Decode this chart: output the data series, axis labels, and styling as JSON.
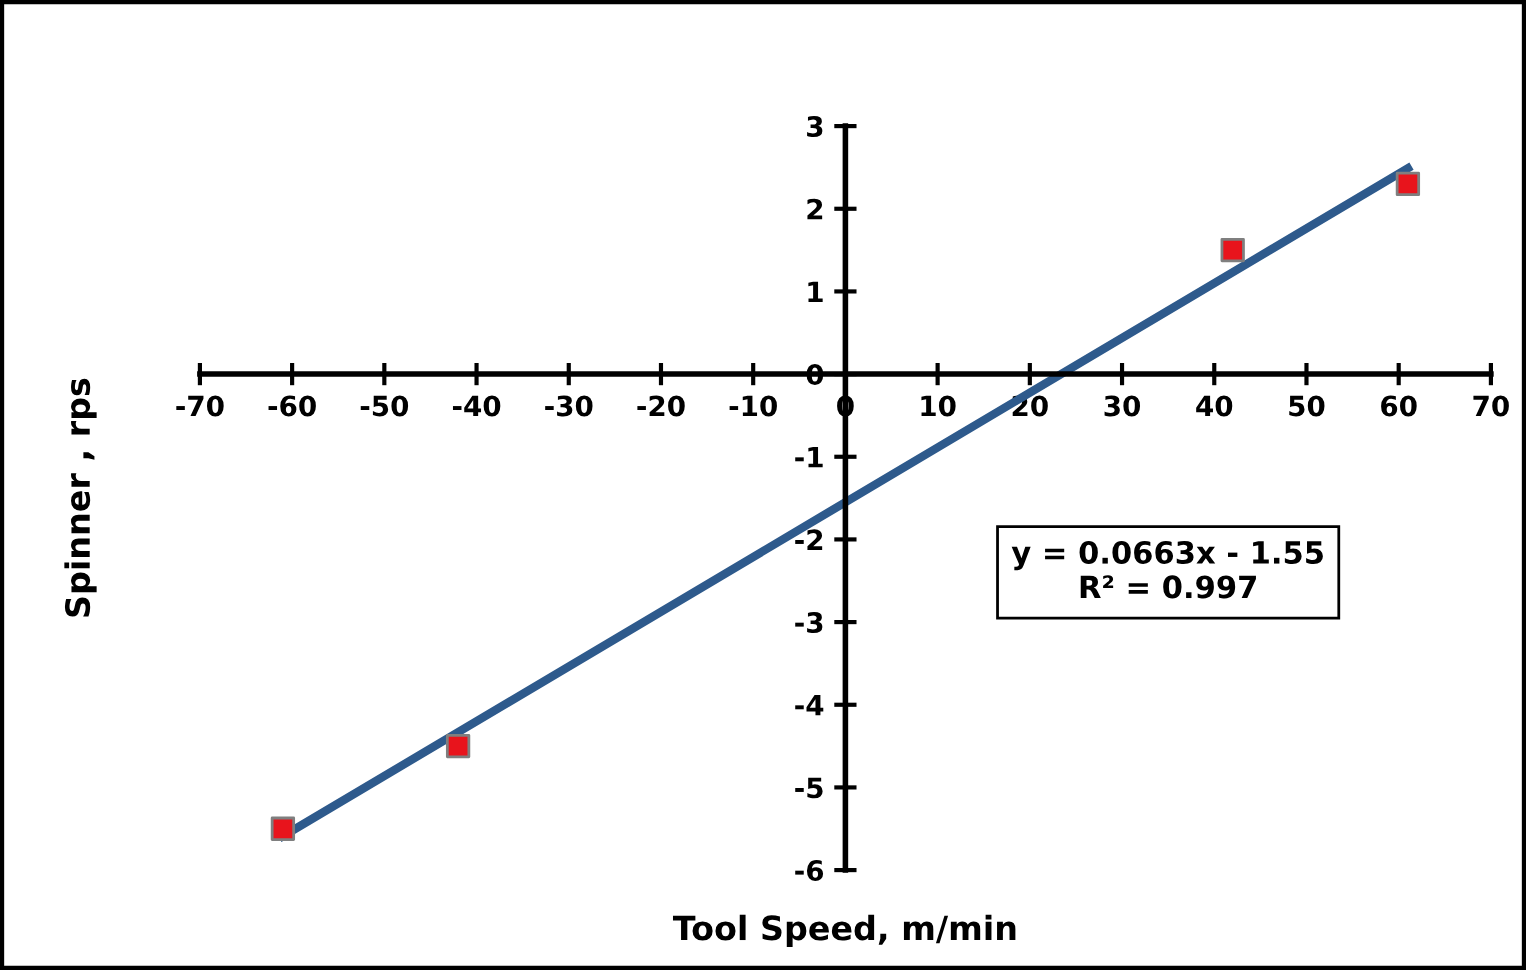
{
  "chart_data": {
    "type": "scatter",
    "xlabel": "Tool Speed, m/min",
    "ylabel": "Spinner , rps",
    "xlim": [
      -70,
      70
    ],
    "xticks": [
      -70,
      -60,
      -50,
      -40,
      -30,
      -20,
      -10,
      0,
      10,
      20,
      30,
      40,
      50,
      60,
      70
    ],
    "ylim": [
      -6,
      3
    ],
    "yticks": [
      -6,
      -5,
      -4,
      -3,
      -2,
      -1,
      0,
      1,
      2,
      3
    ],
    "grid": false,
    "legend": false,
    "series": [
      {
        "color": "#e8141c",
        "marker": "square",
        "x": [
          -61,
          -42,
          42,
          61
        ],
        "values": [
          -5.5,
          -4.5,
          1.5,
          2.3
        ]
      },
      {
        "type": "line",
        "color": "#2e5a8c",
        "marker": "none",
        "line_style": "solid",
        "x": [
          -61,
          61
        ],
        "values": [
          -5.59,
          2.49
        ]
      }
    ],
    "annotations": [
      "y = 0.0663x - 1.55\nR² = 0.997"
    ]
  }
}
